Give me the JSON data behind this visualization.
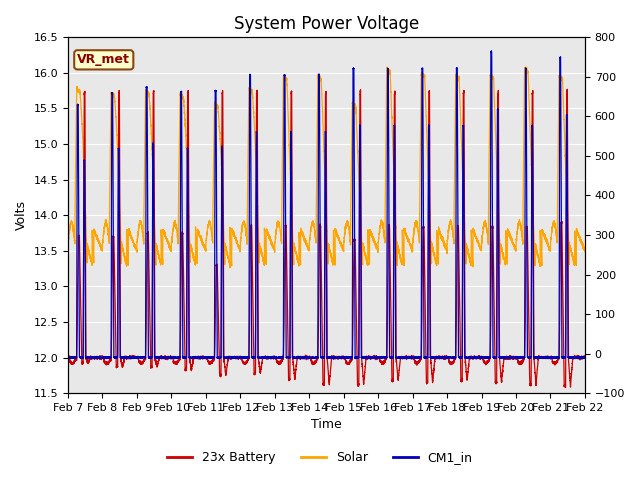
{
  "title": "System Power Voltage",
  "xlabel": "Time",
  "ylabel": "Volts",
  "xlim": [
    7,
    22
  ],
  "ylim_left": [
    11.5,
    16.5
  ],
  "ylim_right": [
    -100,
    800
  ],
  "yticks_left": [
    11.5,
    12.0,
    12.5,
    13.0,
    13.5,
    14.0,
    14.5,
    15.0,
    15.5,
    16.0,
    16.5
  ],
  "yticks_right": [
    -100,
    0,
    100,
    200,
    300,
    400,
    500,
    600,
    700,
    800
  ],
  "xtick_positions": [
    7,
    8,
    9,
    10,
    11,
    12,
    13,
    14,
    15,
    16,
    17,
    18,
    19,
    20,
    21,
    22
  ],
  "xtick_labels": [
    "Feb 7",
    "Feb 8",
    "Feb 9",
    "Feb 10",
    "Feb 11",
    "Feb 12",
    "Feb 13",
    "Feb 14",
    "Feb 15",
    "Feb 16",
    "Feb 17",
    "Feb 18",
    "Feb 19",
    "Feb 20",
    "Feb 21",
    "Feb 22"
  ],
  "legend_labels": [
    "23x Battery",
    "Solar",
    "CM1_in"
  ],
  "legend_colors": [
    "#cc0000",
    "#ffa500",
    "#0000bb"
  ],
  "vr_met_label": "VR_met",
  "bg_color": "#e8e8e8",
  "title_fontsize": 12,
  "axis_fontsize": 9,
  "tick_fontsize": 8,
  "legend_fontsize": 9,
  "n_days": 15,
  "pts_per_day": 500
}
